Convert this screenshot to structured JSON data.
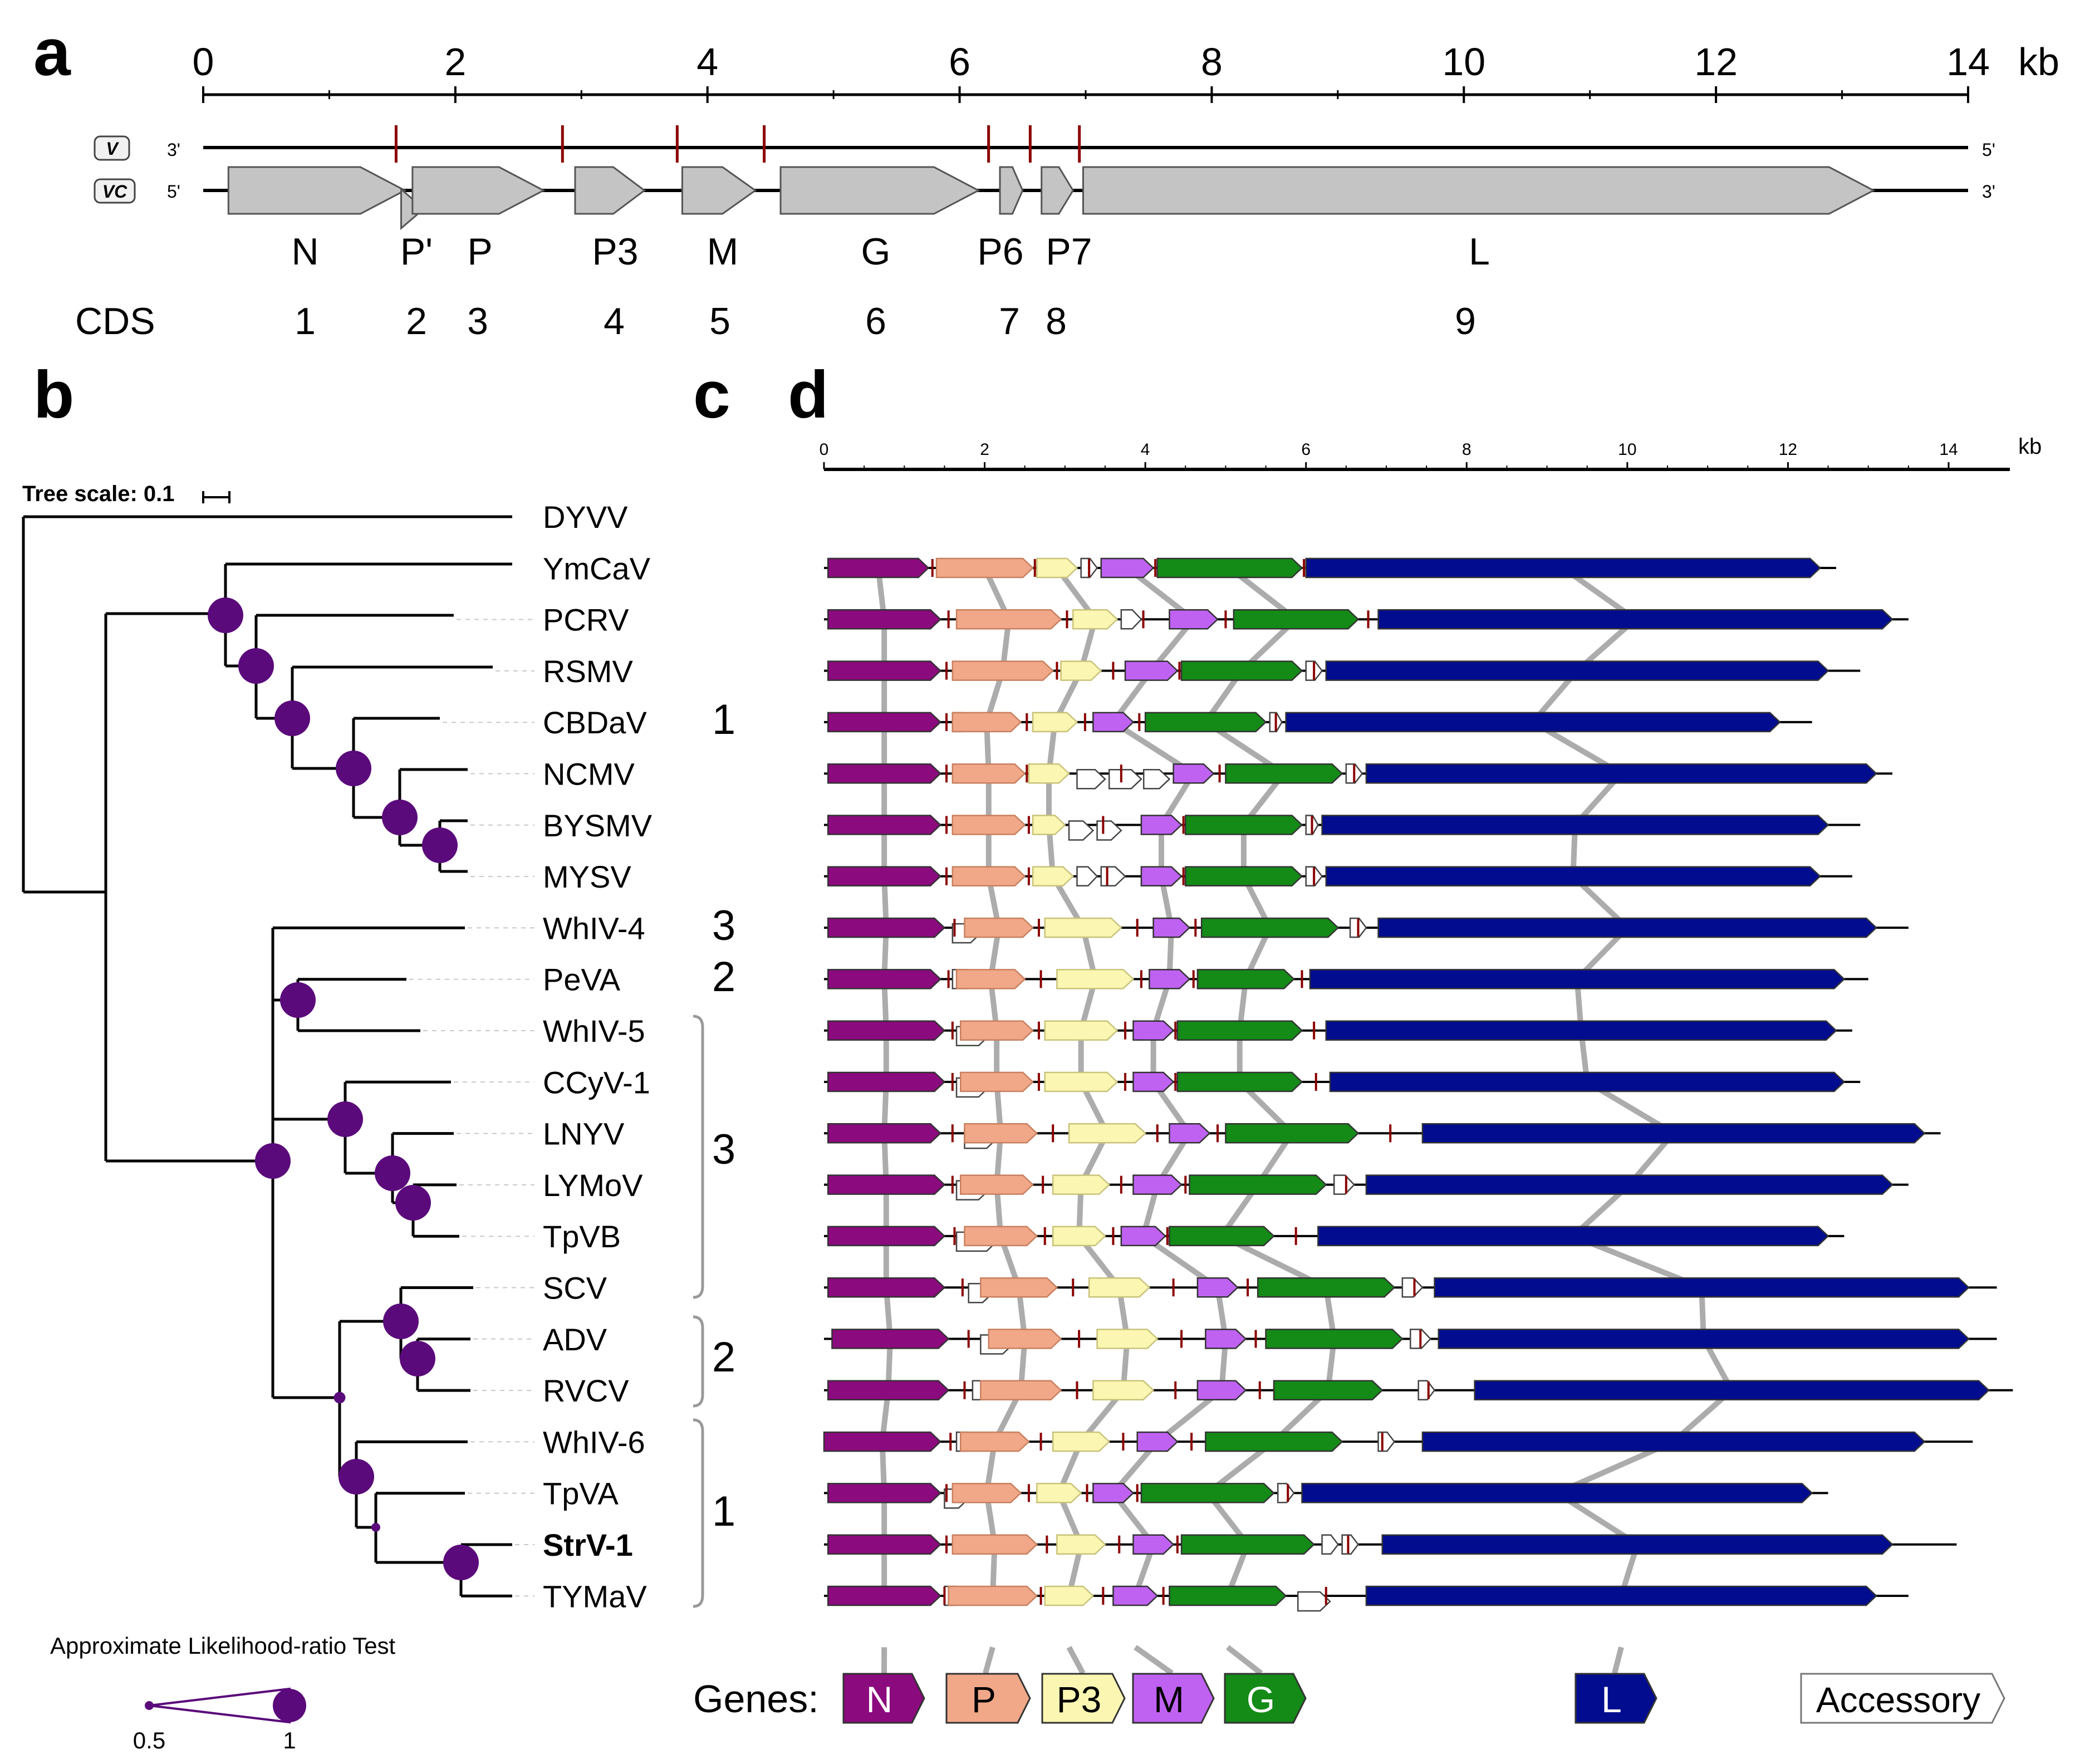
{
  "panels": {
    "a": "a",
    "b": "b",
    "c": "c",
    "d": "d"
  },
  "panel_a": {
    "scale_ticks": [
      "0",
      "2",
      "4",
      "6",
      "8",
      "10",
      "12",
      "14"
    ],
    "scale_unit": "kb",
    "strand_v": {
      "badge": "V",
      "left": "3'",
      "right": "5'"
    },
    "strand_vc": {
      "badge": "VC",
      "left": "5'",
      "right": "3'"
    },
    "genes": [
      {
        "label": "N",
        "start": 0.2,
        "end": 1.6
      },
      {
        "label": "P'",
        "start": 1.57,
        "end": 1.75
      },
      {
        "label": "P",
        "start": 1.66,
        "end": 2.7
      },
      {
        "label": "P3",
        "start": 2.95,
        "end": 3.5
      },
      {
        "label": "M",
        "start": 3.8,
        "end": 4.38
      },
      {
        "label": "G",
        "start": 4.58,
        "end": 6.15
      },
      {
        "label": "P6",
        "start": 6.32,
        "end": 6.5
      },
      {
        "label": "P7",
        "start": 6.65,
        "end": 6.9
      },
      {
        "label": "L",
        "start": 6.98,
        "end": 13.25
      }
    ],
    "cds_title": "CDS",
    "cds_numbers": [
      "1",
      "2",
      "3",
      "4",
      "5",
      "6",
      "7",
      "8",
      "9"
    ],
    "junctions_kb": [
      1.53,
      2.85,
      3.76,
      4.45,
      6.23,
      6.56,
      6.95
    ]
  },
  "panel_b": {
    "tree_scale_label": "Tree scale: 0.1",
    "alrt_label": "Approximate Likelihood-ratio Test",
    "alrt_min": "0.5",
    "alrt_max": "1",
    "taxa": [
      "DYVV",
      "YmCaV",
      "PCRV",
      "RSMV",
      "CBDaV",
      "NCMV",
      "BYSMV",
      "MYSV",
      "WhIV-4",
      "PeVA",
      "WhIV-5",
      "CCyV-1",
      "LNYV",
      "LYMoV",
      "TpVB",
      "SCV",
      "ADV",
      "RVCV",
      "WhIV-6",
      "TpVA",
      "StrV-1",
      "TYMaV"
    ],
    "bold_taxon": "StrV-1",
    "support_values": [
      1,
      0.6,
      1,
      1,
      1,
      1,
      1,
      1,
      1,
      1,
      1,
      1,
      1,
      0.55,
      1,
      0.5,
      1,
      1
    ]
  },
  "panel_c": {
    "lineages": [
      "1",
      "3",
      "2",
      "3",
      "2",
      "1"
    ]
  },
  "panel_d": {
    "scale_ticks": [
      "0",
      "2",
      "4",
      "6",
      "8",
      "10",
      "12",
      "14"
    ],
    "scale_unit": "kb",
    "colors": {
      "N": "#8b0a7d",
      "P": "#f0a889",
      "P3": "#fbf7b3",
      "M": "#bf62f2",
      "G": "#148a17",
      "L": "#020c8f",
      "Accessory": "#ffffff",
      "junction": "#8b0000",
      "connector": "#9d9d9d"
    },
    "genomes": [
      {
        "taxon": "YmCaV",
        "length": 12.6,
        "genes": [
          [
            "N",
            0.05,
            1.3
          ],
          [
            "P",
            1.4,
            2.6
          ],
          [
            "P3",
            2.65,
            3.15
          ],
          [
            "A",
            3.2,
            3.4
          ],
          [
            "M",
            3.45,
            4.1
          ],
          [
            "G",
            4.15,
            5.95
          ],
          [
            "L",
            6.0,
            12.4
          ]
        ]
      },
      {
        "taxon": "PCRV",
        "length": 13.5,
        "genes": [
          [
            "N",
            0.05,
            1.45
          ],
          [
            "P",
            1.65,
            2.95
          ],
          [
            "P3",
            3.1,
            3.65
          ],
          [
            "A",
            3.7,
            3.95
          ],
          [
            "M",
            4.3,
            4.9
          ],
          [
            "G",
            5.1,
            6.65
          ],
          [
            "L",
            6.9,
            13.3
          ]
        ]
      },
      {
        "taxon": "RSMV",
        "length": 12.9,
        "genes": [
          [
            "N",
            0.05,
            1.45
          ],
          [
            "P",
            1.6,
            2.85
          ],
          [
            "P3",
            2.95,
            3.45
          ],
          [
            "M",
            3.75,
            4.4
          ],
          [
            "G",
            4.45,
            5.95
          ],
          [
            "A",
            6.0,
            6.2
          ],
          [
            "L",
            6.25,
            12.5
          ]
        ]
      },
      {
        "taxon": "CBDaV",
        "length": 12.3,
        "genes": [
          [
            "N",
            0.05,
            1.45
          ],
          [
            "A",
            1.6,
            1.85
          ],
          [
            "P",
            1.6,
            2.45
          ],
          [
            "P3",
            2.6,
            3.15
          ],
          [
            "M",
            3.35,
            3.85
          ],
          [
            "G",
            4.0,
            5.5
          ],
          [
            "A",
            5.55,
            5.7
          ],
          [
            "L",
            5.75,
            11.9
          ]
        ]
      },
      {
        "taxon": "NCMV",
        "length": 13.3,
        "genes": [
          [
            "N",
            0.05,
            1.45
          ],
          [
            "P",
            1.6,
            2.5
          ],
          [
            "P3",
            2.55,
            3.05
          ],
          [
            "A",
            3.15,
            3.5
          ],
          [
            "A",
            3.55,
            3.95
          ],
          [
            "A",
            3.98,
            4.3
          ],
          [
            "M",
            4.35,
            4.85
          ],
          [
            "G",
            5.0,
            6.45
          ],
          [
            "A",
            6.5,
            6.7
          ],
          [
            "L",
            6.75,
            13.1
          ]
        ]
      },
      {
        "taxon": "BYSMV",
        "length": 12.9,
        "genes": [
          [
            "N",
            0.05,
            1.45
          ],
          [
            "P",
            1.6,
            2.5
          ],
          [
            "P3",
            2.6,
            3.0
          ],
          [
            "A",
            3.05,
            3.35
          ],
          [
            "A",
            3.4,
            3.7
          ],
          [
            "M",
            3.95,
            4.45
          ],
          [
            "G",
            4.5,
            5.95
          ],
          [
            "A",
            6.0,
            6.15
          ],
          [
            "L",
            6.2,
            12.5
          ]
        ]
      },
      {
        "taxon": "MYSV",
        "length": 12.8,
        "genes": [
          [
            "N",
            0.05,
            1.45
          ],
          [
            "P",
            1.6,
            2.5
          ],
          [
            "P3",
            2.6,
            3.1
          ],
          [
            "A",
            3.15,
            3.4
          ],
          [
            "A",
            3.45,
            3.75
          ],
          [
            "M",
            3.95,
            4.45
          ],
          [
            "G",
            4.5,
            5.95
          ],
          [
            "A",
            6.0,
            6.2
          ],
          [
            "L",
            6.25,
            12.4
          ]
        ]
      },
      {
        "taxon": "WhIV-4",
        "length": 13.5,
        "genes": [
          [
            "N",
            0.05,
            1.5
          ],
          [
            "A",
            1.6,
            1.95
          ],
          [
            "P",
            1.75,
            2.6
          ],
          [
            "P3",
            2.75,
            3.7
          ],
          [
            "M",
            4.1,
            4.55
          ],
          [
            "G",
            4.7,
            6.4
          ],
          [
            "A",
            6.55,
            6.75
          ],
          [
            "L",
            6.9,
            13.1
          ]
        ]
      },
      {
        "taxon": "PeVA",
        "length": 13.0,
        "genes": [
          [
            "N",
            0.05,
            1.45
          ],
          [
            "A",
            1.6,
            1.9
          ],
          [
            "P",
            1.65,
            2.5
          ],
          [
            "P3",
            2.9,
            3.85
          ],
          [
            "M",
            4.05,
            4.55
          ],
          [
            "G",
            4.65,
            5.85
          ],
          [
            "L",
            6.05,
            12.7
          ]
        ]
      },
      {
        "taxon": "WhIV-5",
        "length": 12.8,
        "genes": [
          [
            "N",
            0.05,
            1.5
          ],
          [
            "A",
            1.65,
            2.05
          ],
          [
            "P",
            1.7,
            2.6
          ],
          [
            "P3",
            2.75,
            3.65
          ],
          [
            "M",
            3.85,
            4.35
          ],
          [
            "G",
            4.4,
            5.95
          ],
          [
            "L",
            6.25,
            12.6
          ]
        ]
      },
      {
        "taxon": "CCyV-1",
        "length": 12.9,
        "genes": [
          [
            "N",
            0.05,
            1.5
          ],
          [
            "A",
            1.65,
            2.05
          ],
          [
            "P",
            1.7,
            2.6
          ],
          [
            "P3",
            2.75,
            3.65
          ],
          [
            "M",
            3.85,
            4.35
          ],
          [
            "G",
            4.4,
            5.95
          ],
          [
            "L",
            6.3,
            12.7
          ]
        ]
      },
      {
        "taxon": "LNYV",
        "length": 13.9,
        "genes": [
          [
            "N",
            0.05,
            1.45
          ],
          [
            "A",
            1.75,
            2.15
          ],
          [
            "P",
            1.75,
            2.65
          ],
          [
            "P3",
            3.05,
            4.0
          ],
          [
            "M",
            4.3,
            4.8
          ],
          [
            "G",
            5.0,
            6.65
          ],
          [
            "L",
            7.45,
            13.7
          ]
        ]
      },
      {
        "taxon": "LYMoV",
        "length": 13.5,
        "genes": [
          [
            "N",
            0.05,
            1.5
          ],
          [
            "A",
            1.65,
            2.05
          ],
          [
            "P",
            1.7,
            2.6
          ],
          [
            "P3",
            2.85,
            3.55
          ],
          [
            "M",
            3.85,
            4.45
          ],
          [
            "G",
            4.55,
            6.25
          ],
          [
            "A",
            6.35,
            6.6
          ],
          [
            "L",
            6.75,
            13.3
          ]
        ]
      },
      {
        "taxon": "TpVB",
        "length": 12.7,
        "genes": [
          [
            "N",
            0.05,
            1.5
          ],
          [
            "A",
            1.65,
            2.15
          ],
          [
            "P",
            1.75,
            2.65
          ],
          [
            "P3",
            2.85,
            3.5
          ],
          [
            "M",
            3.7,
            4.25
          ],
          [
            "G",
            4.3,
            5.6
          ],
          [
            "L",
            6.15,
            12.5
          ]
        ]
      },
      {
        "taxon": "SCV",
        "length": 14.6,
        "genes": [
          [
            "N",
            0.05,
            1.5
          ],
          [
            "A",
            1.8,
            2.1
          ],
          [
            "P",
            1.95,
            2.9
          ],
          [
            "P3",
            3.3,
            4.05
          ],
          [
            "M",
            4.65,
            5.15
          ],
          [
            "G",
            5.4,
            7.1
          ],
          [
            "A",
            7.2,
            7.45
          ],
          [
            "L",
            7.6,
            14.25
          ]
        ]
      },
      {
        "taxon": "ADV",
        "length": 14.6,
        "genes": [
          [
            "N",
            0.1,
            1.55
          ],
          [
            "A",
            1.95,
            2.35
          ],
          [
            "P",
            2.05,
            2.95
          ],
          [
            "P3",
            3.4,
            4.15
          ],
          [
            "M",
            4.75,
            5.25
          ],
          [
            "G",
            5.5,
            7.2
          ],
          [
            "A",
            7.3,
            7.55
          ],
          [
            "L",
            7.65,
            14.25
          ]
        ]
      },
      {
        "taxon": "RVCV",
        "length": 14.8,
        "genes": [
          [
            "N",
            0.05,
            1.55
          ],
          [
            "A",
            1.85,
            2.1
          ],
          [
            "P",
            1.95,
            2.95
          ],
          [
            "P3",
            3.35,
            4.1
          ],
          [
            "M",
            4.65,
            5.25
          ],
          [
            "G",
            5.6,
            6.95
          ],
          [
            "A",
            7.4,
            7.6
          ],
          [
            "L",
            8.1,
            14.5
          ]
        ]
      },
      {
        "taxon": "WhIV-6",
        "length": 14.3,
        "genes": [
          [
            "N",
            0.0,
            1.45
          ],
          [
            "A",
            1.65,
            1.9
          ],
          [
            "P",
            1.7,
            2.55
          ],
          [
            "P3",
            2.85,
            3.55
          ],
          [
            "M",
            3.9,
            4.4
          ],
          [
            "G",
            4.75,
            6.45
          ],
          [
            "A",
            6.9,
            7.1
          ],
          [
            "L",
            7.45,
            13.7
          ]
        ]
      },
      {
        "taxon": "TpVA",
        "length": 12.5,
        "genes": [
          [
            "N",
            0.05,
            1.45
          ],
          [
            "A",
            1.5,
            1.8
          ],
          [
            "P",
            1.6,
            2.45
          ],
          [
            "P3",
            2.65,
            3.2
          ],
          [
            "M",
            3.35,
            3.85
          ],
          [
            "G",
            3.95,
            5.6
          ],
          [
            "A",
            5.65,
            5.85
          ],
          [
            "L",
            5.95,
            12.3
          ]
        ]
      },
      {
        "taxon": "StrV-1",
        "length": 14.1,
        "genes": [
          [
            "N",
            0.05,
            1.45
          ],
          [
            "P",
            1.6,
            2.65
          ],
          [
            "P3",
            2.9,
            3.5
          ],
          [
            "M",
            3.85,
            4.35
          ],
          [
            "G",
            4.45,
            6.1
          ],
          [
            "A",
            6.2,
            6.4
          ],
          [
            "A",
            6.45,
            6.65
          ],
          [
            "L",
            6.95,
            13.3
          ]
        ]
      },
      {
        "taxon": "TYMaV",
        "length": 13.5,
        "genes": [
          [
            "N",
            0.05,
            1.45
          ],
          [
            "A",
            1.5,
            1.75
          ],
          [
            "P",
            1.55,
            2.65
          ],
          [
            "P3",
            2.75,
            3.35
          ],
          [
            "M",
            3.6,
            4.15
          ],
          [
            "G",
            4.3,
            5.75
          ],
          [
            "A",
            5.9,
            6.3
          ],
          [
            "L",
            6.75,
            13.1
          ]
        ]
      }
    ],
    "legend_title": "Genes:",
    "legend_items": [
      "N",
      "P",
      "P3",
      "M",
      "G",
      "L",
      "Accessory"
    ]
  }
}
